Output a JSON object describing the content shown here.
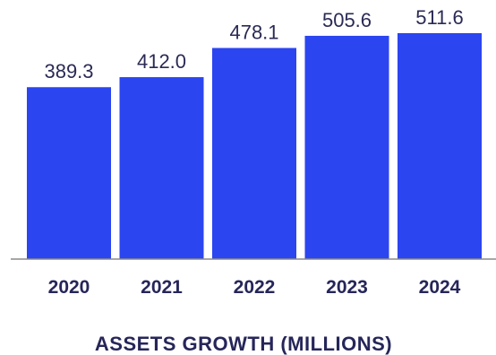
{
  "chart_data": {
    "type": "bar",
    "title": "ASSETS GROWTH (MILLIONS)",
    "categories": [
      "2020",
      "2021",
      "2022",
      "2023",
      "2024"
    ],
    "values": [
      389.3,
      412.0,
      478.1,
      505.6,
      511.6
    ],
    "value_labels": [
      "389.3",
      "412.0",
      "478.1",
      "505.6",
      "511.6"
    ],
    "xlabel": "",
    "ylabel": "",
    "ylim": [
      0,
      511.6
    ],
    "grid": false,
    "legend": "none",
    "colors": {
      "bar": "#2b45f0",
      "axis": "#8a8a8a",
      "text": "#26265a"
    }
  }
}
